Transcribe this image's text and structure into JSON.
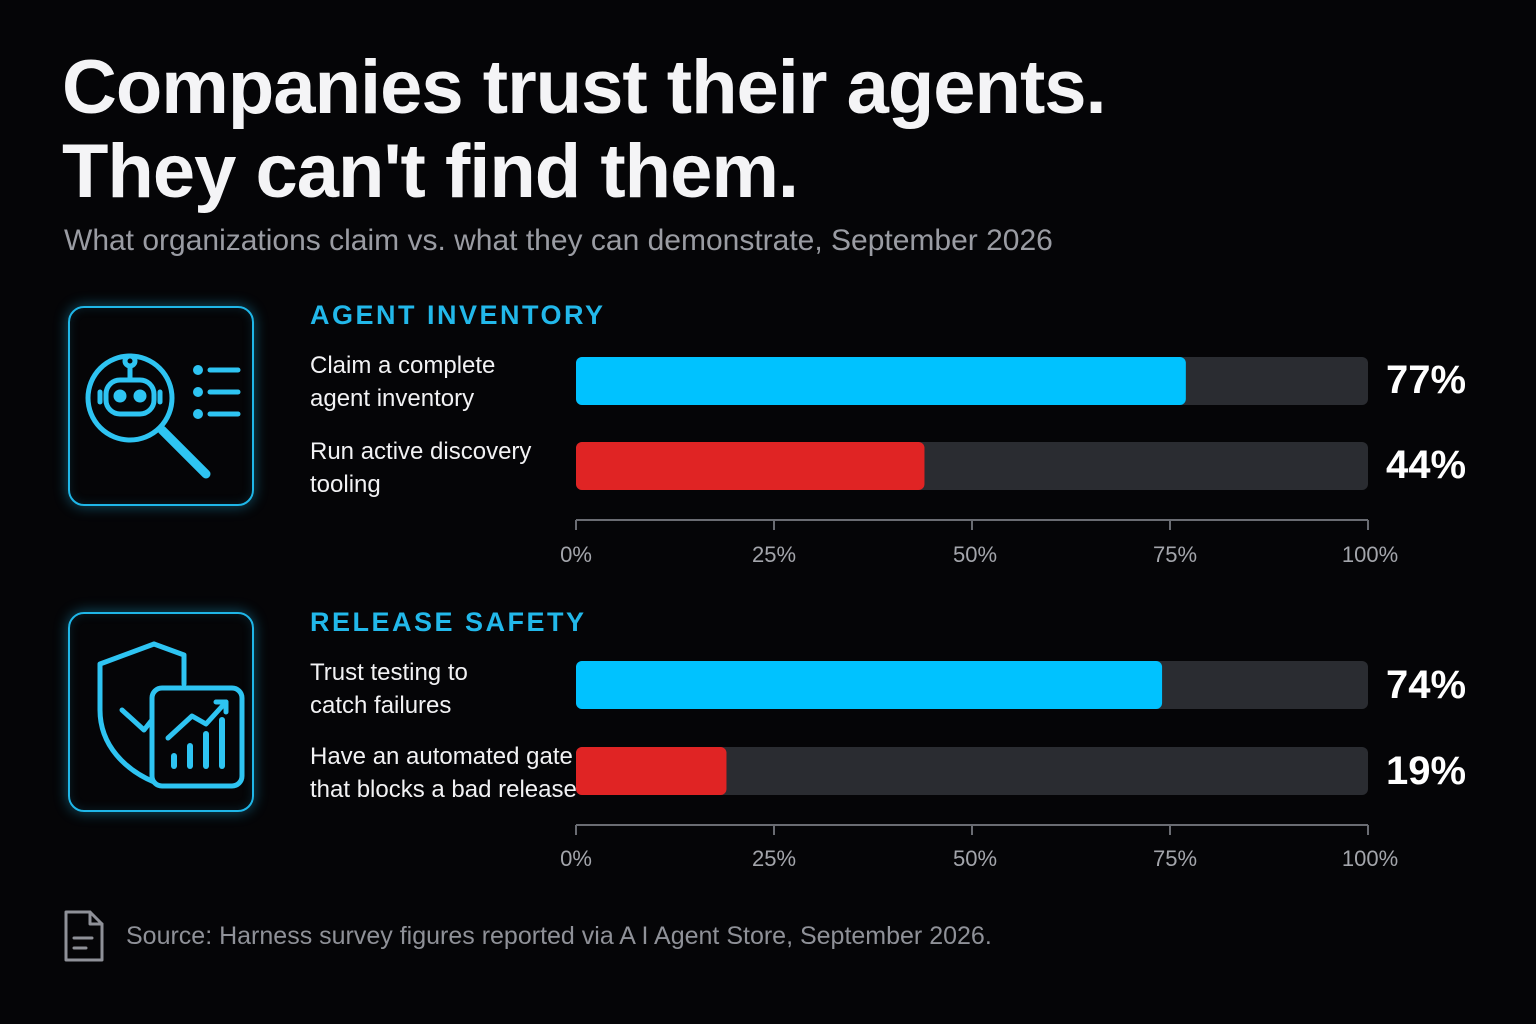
{
  "title_lines": [
    "Companies trust their agents.",
    "They can't find them."
  ],
  "subtitle": "What organizations claim vs. what they can demonstrate, September 2026",
  "source": "Source: Harness survey figures reported via A I  Agent Store, September 2026.",
  "icons": {
    "section1": "robot-magnifier-list-icon",
    "section2": "shield-check-growth-chart-icon",
    "source": "document-icon"
  },
  "colors": {
    "accent_blue": "#00c2ff",
    "accent_red": "#e02424",
    "track": "#2a2c31",
    "heading": "#22b8ea"
  },
  "chart_data": [
    {
      "type": "bar",
      "orientation": "horizontal",
      "title": "AGENT INVENTORY",
      "categories": [
        "Claim a complete agent inventory",
        "Run active discovery tooling"
      ],
      "category_lines": [
        [
          "Claim a complete",
          "agent inventory"
        ],
        [
          "Run active discovery",
          "tooling"
        ]
      ],
      "values": [
        77,
        44
      ],
      "value_labels": [
        "77%",
        "44%"
      ],
      "bar_colors": [
        "#00c2ff",
        "#e02424"
      ],
      "xlim": [
        0,
        100
      ],
      "ticks": [
        0,
        25,
        50,
        75,
        100
      ],
      "tick_labels": [
        "0%",
        "25%",
        "50%",
        "75%",
        "100%"
      ],
      "grid": false
    },
    {
      "type": "bar",
      "orientation": "horizontal",
      "title": "RELEASE SAFETY",
      "categories": [
        "Trust testing to catch failures",
        "Have an automated gate that blocks a bad release"
      ],
      "category_lines": [
        [
          "Trust testing to",
          "catch failures"
        ],
        [
          "Have an automated gate",
          "that blocks a bad release"
        ]
      ],
      "values": [
        74,
        19
      ],
      "value_labels": [
        "74%",
        "19%"
      ],
      "bar_colors": [
        "#00c2ff",
        "#e02424"
      ],
      "xlim": [
        0,
        100
      ],
      "ticks": [
        0,
        25,
        50,
        75,
        100
      ],
      "tick_labels": [
        "0%",
        "25%",
        "50%",
        "75%",
        "100%"
      ],
      "grid": false
    }
  ]
}
